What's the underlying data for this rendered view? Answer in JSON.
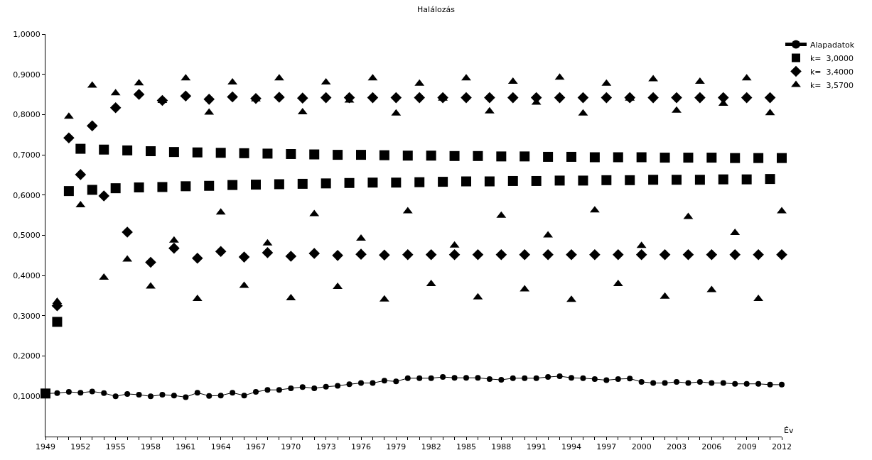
{
  "chart_data": {
    "type": "scatter",
    "title": "Halálozás",
    "xlabel": "Év",
    "x": [
      1949,
      1950,
      1951,
      1952,
      1953,
      1954,
      1955,
      1956,
      1957,
      1958,
      1959,
      1960,
      1961,
      1962,
      1963,
      1964,
      1965,
      1966,
      1967,
      1968,
      1969,
      1970,
      1971,
      1972,
      1973,
      1974,
      1975,
      1976,
      1977,
      1978,
      1979,
      1980,
      1981,
      1982,
      1983,
      1984,
      1985,
      1986,
      1987,
      1988,
      1989,
      1990,
      1991,
      1992,
      1993,
      1994,
      1995,
      1996,
      1997,
      1998,
      1999,
      2000,
      2001,
      2002,
      2003,
      2004,
      2005,
      2006,
      2007,
      2008,
      2009,
      2010,
      2011,
      2012
    ],
    "series": [
      {
        "name": "Alapadatok",
        "type": "line",
        "marker": "circle",
        "color": "#000000",
        "values": [
          0.107,
          0.108,
          0.111,
          0.109,
          0.112,
          0.108,
          0.1,
          0.106,
          0.104,
          0.1,
          0.104,
          0.102,
          0.098,
          0.109,
          0.101,
          0.102,
          0.109,
          0.102,
          0.111,
          0.116,
          0.116,
          0.12,
          0.123,
          0.12,
          0.124,
          0.126,
          0.13,
          0.133,
          0.133,
          0.139,
          0.137,
          0.145,
          0.145,
          0.145,
          0.148,
          0.146,
          0.146,
          0.146,
          0.143,
          0.141,
          0.145,
          0.145,
          0.145,
          0.148,
          0.15,
          0.146,
          0.145,
          0.143,
          0.14,
          0.143,
          0.144,
          0.136,
          0.133,
          0.133,
          0.136,
          0.133,
          0.136,
          0.133,
          0.133,
          0.131,
          0.131,
          0.131,
          0.129,
          0.129
        ]
      },
      {
        "name": "k=  3,0000",
        "marker": "square",
        "color": "#000000",
        "values": [
          0.107,
          0.285,
          0.61,
          0.715,
          0.613,
          0.713,
          0.617,
          0.711,
          0.619,
          0.709,
          0.62,
          0.707,
          0.622,
          0.706,
          0.623,
          0.705,
          0.625,
          0.704,
          0.626,
          0.703,
          0.627,
          0.702,
          0.628,
          0.701,
          0.629,
          0.7,
          0.63,
          0.7,
          0.631,
          0.699,
          0.631,
          0.698,
          0.632,
          0.698,
          0.633,
          0.697,
          0.634,
          0.697,
          0.634,
          0.696,
          0.635,
          0.696,
          0.635,
          0.695,
          0.636,
          0.695,
          0.636,
          0.694,
          0.637,
          0.694,
          0.637,
          0.694,
          0.638,
          0.693,
          0.638,
          0.693,
          0.638,
          0.693,
          0.639,
          0.692,
          0.639,
          0.692,
          0.64,
          0.692
        ]
      },
      {
        "name": "k=  3,4000",
        "marker": "diamond",
        "color": "#000000",
        "values": [
          null,
          0.325,
          0.742,
          0.651,
          0.772,
          0.598,
          0.817,
          0.508,
          0.85,
          0.433,
          0.835,
          0.468,
          0.846,
          0.443,
          0.838,
          0.46,
          0.844,
          0.446,
          0.84,
          0.457,
          0.843,
          0.448,
          0.841,
          0.455,
          0.842,
          0.45,
          0.842,
          0.453,
          0.842,
          0.451,
          0.842,
          0.452,
          0.842,
          0.452,
          0.842,
          0.452,
          0.842,
          0.452,
          0.842,
          0.452,
          0.842,
          0.452,
          0.842,
          0.452,
          0.842,
          0.452,
          0.842,
          0.452,
          0.842,
          0.452,
          0.842,
          0.452,
          0.842,
          0.452,
          0.842,
          0.452,
          0.842,
          0.452,
          0.842,
          0.452,
          0.842,
          0.452,
          0.842,
          0.452
        ]
      },
      {
        "name": "k=  3,5700",
        "marker": "triangle",
        "color": "#000000",
        "values": [
          null,
          0.335,
          0.795,
          0.575,
          0.872,
          0.395,
          0.853,
          0.44,
          0.878,
          0.373,
          0.834,
          0.487,
          0.89,
          0.342,
          0.805,
          0.557,
          0.88,
          0.375,
          0.838,
          0.48,
          0.89,
          0.344,
          0.806,
          0.553,
          0.88,
          0.372,
          0.835,
          0.492,
          0.89,
          0.341,
          0.803,
          0.56,
          0.877,
          0.379,
          0.84,
          0.475,
          0.89,
          0.346,
          0.808,
          0.549,
          0.882,
          0.366,
          0.83,
          0.5,
          0.892,
          0.34,
          0.803,
          0.562,
          0.877,
          0.379,
          0.84,
          0.474,
          0.888,
          0.348,
          0.81,
          0.546,
          0.882,
          0.364,
          0.827,
          0.506,
          0.89,
          0.342,
          0.804,
          0.56
        ]
      }
    ],
    "xlim": [
      1949,
      2012
    ],
    "xticks": [
      1949,
      {
        "value": 1950,
        "label": null
      },
      {
        "value": 1951,
        "label": null
      },
      1952,
      {
        "value": 1953,
        "label": null
      },
      {
        "value": 1954,
        "label": null
      },
      1955,
      {
        "value": 1956,
        "label": null
      },
      {
        "value": 1957,
        "label": null
      },
      1958,
      {
        "value": 1959,
        "label": null
      },
      {
        "value": 1960,
        "label": null
      },
      1961,
      {
        "value": 1962,
        "label": null
      },
      {
        "value": 1963,
        "label": null
      },
      1964,
      {
        "value": 1965,
        "label": null
      },
      {
        "value": 1966,
        "label": null
      },
      1967,
      {
        "value": 1968,
        "label": null
      },
      {
        "value": 1969,
        "label": null
      },
      1970,
      {
        "value": 1971,
        "label": null
      },
      {
        "value": 1972,
        "label": null
      },
      1973,
      {
        "value": 1974,
        "label": null
      },
      {
        "value": 1975,
        "label": null
      },
      1976,
      {
        "value": 1977,
        "label": null
      },
      {
        "value": 1978,
        "label": null
      },
      1979,
      {
        "value": 1980,
        "label": null
      },
      {
        "value": 1981,
        "label": null
      },
      1982,
      {
        "value": 1983,
        "label": null
      },
      {
        "value": 1984,
        "label": null
      },
      1985,
      {
        "value": 1986,
        "label": null
      },
      {
        "value": 1987,
        "label": null
      },
      1988,
      {
        "value": 1989,
        "label": null
      },
      {
        "value": 1990,
        "label": null
      },
      1991,
      {
        "value": 1992,
        "label": null
      },
      {
        "value": 1993,
        "label": null
      },
      1994,
      {
        "value": 1995,
        "label": null
      },
      {
        "value": 1996,
        "label": null
      },
      1997,
      {
        "value": 1998,
        "label": null
      },
      {
        "value": 1999,
        "label": null
      },
      2000,
      {
        "value": 2001,
        "label": null
      },
      {
        "value": 2002,
        "label": null
      },
      2003,
      {
        "value": 2004,
        "label": null
      },
      {
        "value": 2005,
        "label": null
      },
      2006,
      {
        "value": 2007,
        "label": null
      },
      {
        "value": 2008,
        "label": null
      },
      2009,
      {
        "value": 2010,
        "label": null
      },
      {
        "value": 2011,
        "label": null
      },
      2012
    ],
    "ylim": [
      0,
      1.0
    ],
    "yticks": [
      {
        "value": 0.1,
        "label": "0,1000"
      },
      {
        "value": 0.2,
        "label": "0,2000"
      },
      {
        "value": 0.3,
        "label": "0,3000"
      },
      {
        "value": 0.4,
        "label": "0,4000"
      },
      {
        "value": 0.5,
        "label": "0,5000"
      },
      {
        "value": 0.6,
        "label": "0,6000"
      },
      {
        "value": 0.7,
        "label": "0,7000"
      },
      {
        "value": 0.8,
        "label": "0,8000"
      },
      {
        "value": 0.9,
        "label": "0,9000"
      },
      {
        "value": 1.0,
        "label": "1,0000"
      }
    ],
    "legend": "top right"
  }
}
